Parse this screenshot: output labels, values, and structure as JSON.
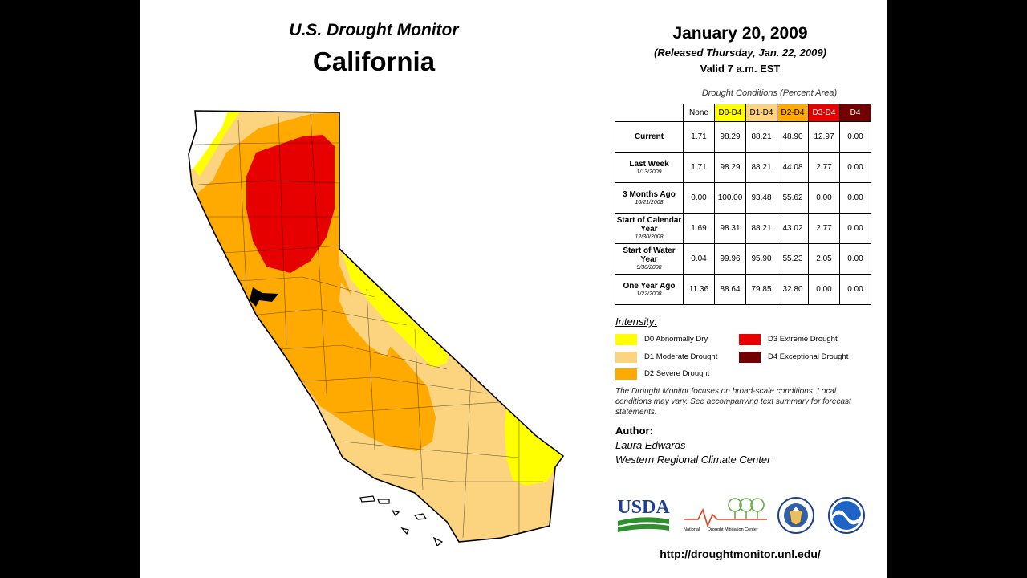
{
  "header": {
    "title": "U.S. Drought Monitor",
    "state": "California"
  },
  "date": {
    "title": "January 20, 2009",
    "released": "(Released Thursday, Jan. 22, 2009)",
    "valid": "Valid 7 a.m. EST"
  },
  "table": {
    "caption": "Drought Conditions (Percent Area)",
    "columns": [
      "None",
      "D0-D4",
      "D1-D4",
      "D2-D4",
      "D3-D4",
      "D4"
    ],
    "column_colors": [
      "#ffffff",
      "#ffff00",
      "#fcd37f",
      "#ffaa00",
      "#e60000",
      "#730000"
    ],
    "column_text_colors": [
      "#000000",
      "#000000",
      "#000000",
      "#000000",
      "#ffffff",
      "#ffffff"
    ],
    "rows": [
      {
        "label": "Current",
        "sublabel": "",
        "values": [
          "1.71",
          "98.29",
          "88.21",
          "48.90",
          "12.97",
          "0.00"
        ]
      },
      {
        "label": "Last Week",
        "sublabel": "1/13/2009",
        "values": [
          "1.71",
          "98.29",
          "88.21",
          "44.08",
          "2.77",
          "0.00"
        ]
      },
      {
        "label": "3 Months Ago",
        "sublabel": "10/21/2008",
        "values": [
          "0.00",
          "100.00",
          "93.48",
          "55.62",
          "0.00",
          "0.00"
        ]
      },
      {
        "label": "Start of Calendar Year",
        "sublabel": "12/30/2008",
        "values": [
          "1.69",
          "98.31",
          "88.21",
          "43.02",
          "2.77",
          "0.00"
        ]
      },
      {
        "label": "Start of Water Year",
        "sublabel": "9/30/2008",
        "values": [
          "0.04",
          "99.96",
          "95.90",
          "55.23",
          "2.05",
          "0.00"
        ]
      },
      {
        "label": "One Year Ago",
        "sublabel": "1/22/2008",
        "values": [
          "11.36",
          "88.64",
          "79.85",
          "32.80",
          "0.00",
          "0.00"
        ]
      }
    ]
  },
  "legend": {
    "title": "Intensity:",
    "items": [
      {
        "label": "D0 Abnormally Dry",
        "color": "#ffff00"
      },
      {
        "label": "D1 Moderate Drought",
        "color": "#fcd37f"
      },
      {
        "label": "D2 Severe Drought",
        "color": "#ffaa00"
      },
      {
        "label": "D3 Extreme Drought",
        "color": "#e60000"
      },
      {
        "label": "D4 Exceptional Drought",
        "color": "#730000"
      }
    ]
  },
  "note": "The Drought Monitor focuses on broad-scale conditions. Local conditions may vary. See accompanying text summary for forecast statements.",
  "author": {
    "title": "Author:",
    "name": "Laura Edwards",
    "org": "Western Regional Climate Center"
  },
  "logos": {
    "usda": "USDA",
    "ndmc_prefix": "National",
    "ndmc_suffix": "Drought Mitigation Center"
  },
  "url": "http://droughtmonitor.unl.edu/"
}
